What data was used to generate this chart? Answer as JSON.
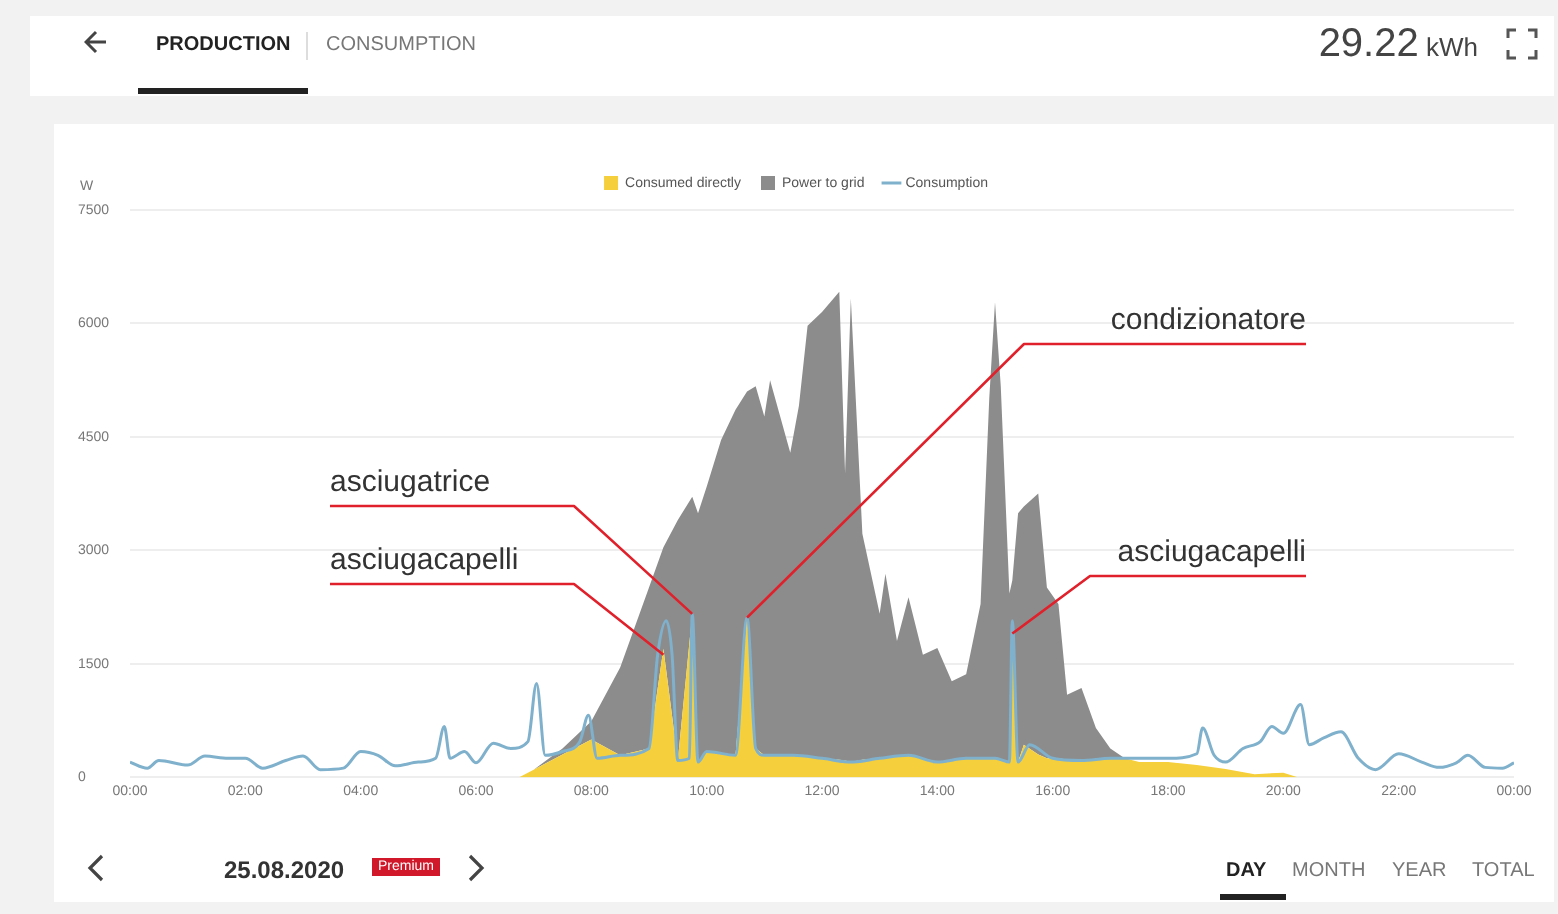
{
  "chart_data": {
    "type": "area",
    "ylabel": "W",
    "legend": "top",
    "grid": "y",
    "stacked": true,
    "marker": "none",
    "xlim": [
      0,
      24
    ],
    "xticks": [
      {
        "value": 0,
        "label": "00:00"
      },
      {
        "value": 2,
        "label": "02:00"
      },
      {
        "value": 4,
        "label": "04:00"
      },
      {
        "value": 6,
        "label": "06:00"
      },
      {
        "value": 8,
        "label": "08:00"
      },
      {
        "value": 10,
        "label": "10:00"
      },
      {
        "value": 12,
        "label": "12:00"
      },
      {
        "value": 14,
        "label": "14:00"
      },
      {
        "value": 16,
        "label": "16:00"
      },
      {
        "value": 18,
        "label": "18:00"
      },
      {
        "value": 20,
        "label": "20:00"
      },
      {
        "value": 22,
        "label": "22:00"
      },
      {
        "value": 24,
        "label": "00:00"
      }
    ],
    "ylim": [
      0,
      7500
    ],
    "yticks": [
      0,
      1500,
      3000,
      4500,
      6000,
      7500
    ],
    "x": [
      6.75,
      7,
      7.5,
      8,
      8.5,
      9,
      9.25,
      9.5,
      9.75,
      9.85,
      10,
      10.25,
      10.5,
      10.7,
      10.85,
      11,
      11.1,
      11.45,
      11.6,
      11.75,
      12,
      12.3,
      12.4,
      12.5,
      12.7,
      13,
      13.1,
      13.3,
      13.5,
      13.75,
      14,
      14.25,
      14.5,
      14.75,
      14.9,
      15,
      15.1,
      15.25,
      15.3,
      15.4,
      15.5,
      15.75,
      15.9,
      16.1,
      16.25,
      16.5,
      16.75,
      17,
      17.25,
      17.5,
      18,
      18.5,
      19,
      19.5,
      20,
      20.25
    ],
    "series": [
      {
        "name": "Consumed directly",
        "type": "area",
        "color": "#f5cf3c",
        "values": [
          0,
          100,
          300,
          500,
          290,
          380,
          1700,
          220,
          2160,
          200,
          340,
          300,
          290,
          2110,
          380,
          290,
          290,
          290,
          280,
          270,
          250,
          230,
          220,
          200,
          230,
          250,
          260,
          270,
          290,
          250,
          200,
          220,
          250,
          250,
          250,
          250,
          230,
          200,
          1900,
          200,
          430,
          300,
          250,
          250,
          230,
          220,
          230,
          250,
          250,
          200,
          200,
          160,
          110,
          40,
          60,
          0
        ]
      },
      {
        "name": "Power to grid",
        "type": "area",
        "color": "#8c8c8c",
        "values": [
          0,
          0,
          80,
          240,
          1160,
          2130,
          1340,
          3180,
          1550,
          3290,
          3500,
          4160,
          4570,
          2990,
          4790,
          4480,
          4960,
          4000,
          4630,
          5700,
          5900,
          6190,
          3800,
          6130,
          2990,
          1910,
          2430,
          1530,
          2090,
          1370,
          1510,
          1050,
          1110,
          2040,
          4750,
          6030,
          4940,
          2230,
          700,
          3290,
          3150,
          3450,
          2260,
          2040,
          860,
          960,
          420,
          130,
          0,
          0,
          0,
          0,
          0,
          0,
          0,
          0
        ]
      },
      {
        "name": "Consumption",
        "type": "line",
        "color": "#7fb0cc",
        "x": [
          0,
          0.3,
          0.5,
          1,
          1.3,
          1.7,
          2,
          2.3,
          2.7,
          3,
          3.3,
          3.7,
          4,
          4.3,
          4.6,
          5,
          5.3,
          5.45,
          5.55,
          5.8,
          6,
          6.3,
          6.6,
          6.9,
          7.05,
          7.2,
          7.5,
          7.8,
          7.95,
          8.1,
          8.5,
          9,
          9.15,
          9.3,
          9.4,
          9.5,
          9.7,
          9.75,
          9.85,
          10,
          10.5,
          10.7,
          10.85,
          11,
          11.5,
          12,
          12.5,
          13,
          13.5,
          14,
          14.5,
          15,
          15.25,
          15.3,
          15.4,
          15.6,
          16,
          16.5,
          17,
          17.5,
          18,
          18.5,
          18.6,
          18.8,
          19,
          19.3,
          19.6,
          19.8,
          20,
          20.3,
          20.45,
          20.7,
          21,
          21.3,
          21.6,
          22,
          22.4,
          22.7,
          23,
          23.2,
          23.5,
          23.8,
          24
        ],
        "values": [
          200,
          120,
          220,
          160,
          280,
          250,
          250,
          120,
          220,
          280,
          100,
          120,
          340,
          290,
          150,
          200,
          250,
          670,
          250,
          340,
          190,
          450,
          380,
          470,
          1240,
          290,
          340,
          470,
          820,
          250,
          290,
          380,
          1620,
          2070,
          1620,
          220,
          250,
          2160,
          200,
          340,
          290,
          2110,
          380,
          290,
          290,
          250,
          200,
          250,
          290,
          200,
          250,
          250,
          200,
          2070,
          200,
          430,
          250,
          220,
          250,
          250,
          250,
          310,
          650,
          290,
          200,
          380,
          470,
          670,
          580,
          960,
          430,
          520,
          600,
          250,
          100,
          310,
          200,
          130,
          190,
          290,
          130,
          120,
          190
        ]
      }
    ],
    "annotations": [
      {
        "text": "asciugatrice",
        "x": 9.75,
        "y": 2160
      },
      {
        "text": "asciugacapelli",
        "x": 9.25,
        "y": 1620
      },
      {
        "text": "condizionatore",
        "x": 10.7,
        "y": 2110
      },
      {
        "text": "asciugacapelli",
        "x": 15.3,
        "y": 1900
      },
      "PRODUCTION",
      "CONSUMPTION",
      "29.22 kWh",
      "25.08.2020",
      "Premium",
      "DAY",
      "MONTH",
      "YEAR",
      "TOTAL"
    ]
  }
}
